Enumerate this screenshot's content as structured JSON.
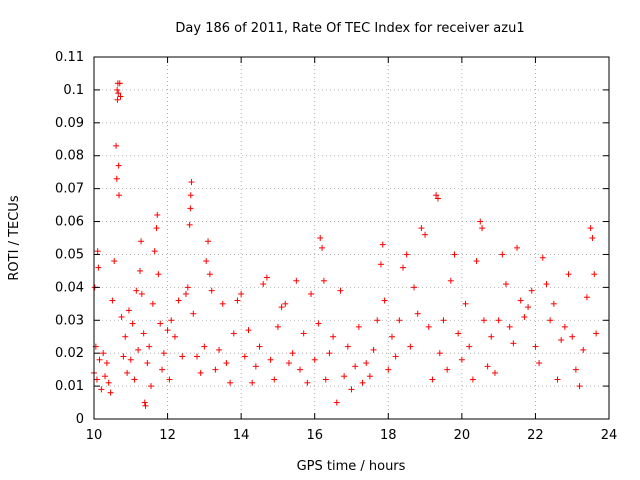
{
  "chart_data": {
    "type": "scatter",
    "title": "Day 186 of 2011, Rate Of TEC Index for receiver azu1",
    "xlabel": "GPS time / hours",
    "ylabel": "ROTI / TECUs",
    "xlim": [
      10,
      24
    ],
    "ylim": [
      0,
      0.11
    ],
    "xticks": [
      "10",
      "12",
      "14",
      "16",
      "18",
      "20",
      "22",
      "24"
    ],
    "yticks": [
      "0",
      "0.01",
      "0.02",
      "0.03",
      "0.04",
      "0.05",
      "0.06",
      "0.07",
      "0.08",
      "0.09",
      "0.1",
      "0.11"
    ],
    "grid": true,
    "marker": "+",
    "color": "#ff0000",
    "series": [
      {
        "points": [
          [
            10.0,
            0.014
          ],
          [
            10.02,
            0.04
          ],
          [
            10.05,
            0.022
          ],
          [
            10.08,
            0.012
          ],
          [
            10.1,
            0.051
          ],
          [
            10.12,
            0.046
          ],
          [
            10.15,
            0.018
          ],
          [
            10.2,
            0.009
          ],
          [
            10.25,
            0.02
          ],
          [
            10.3,
            0.013
          ],
          [
            10.35,
            0.017
          ],
          [
            10.4,
            0.011
          ],
          [
            10.45,
            0.008
          ],
          [
            10.5,
            0.036
          ],
          [
            10.55,
            0.048
          ],
          [
            10.6,
            0.083
          ],
          [
            10.62,
            0.073
          ],
          [
            10.63,
            0.1
          ],
          [
            10.64,
            0.097
          ],
          [
            10.65,
            0.102
          ],
          [
            10.66,
            0.099
          ],
          [
            10.67,
            0.077
          ],
          [
            10.68,
            0.068
          ],
          [
            10.7,
            0.102
          ],
          [
            10.72,
            0.098
          ],
          [
            10.75,
            0.031
          ],
          [
            10.8,
            0.019
          ],
          [
            10.85,
            0.025
          ],
          [
            10.9,
            0.014
          ],
          [
            10.95,
            0.033
          ],
          [
            11.0,
            0.018
          ],
          [
            11.05,
            0.029
          ],
          [
            11.1,
            0.012
          ],
          [
            11.15,
            0.039
          ],
          [
            11.2,
            0.021
          ],
          [
            11.25,
            0.045
          ],
          [
            11.28,
            0.054
          ],
          [
            11.3,
            0.038
          ],
          [
            11.35,
            0.026
          ],
          [
            11.38,
            0.005
          ],
          [
            11.4,
            0.004
          ],
          [
            11.45,
            0.017
          ],
          [
            11.5,
            0.022
          ],
          [
            11.55,
            0.01
          ],
          [
            11.6,
            0.035
          ],
          [
            11.65,
            0.051
          ],
          [
            11.7,
            0.058
          ],
          [
            11.72,
            0.062
          ],
          [
            11.75,
            0.044
          ],
          [
            11.8,
            0.029
          ],
          [
            11.85,
            0.015
          ],
          [
            11.9,
            0.02
          ],
          [
            12.0,
            0.027
          ],
          [
            12.05,
            0.012
          ],
          [
            12.1,
            0.03
          ],
          [
            12.2,
            0.025
          ],
          [
            12.3,
            0.036
          ],
          [
            12.4,
            0.019
          ],
          [
            12.5,
            0.038
          ],
          [
            12.55,
            0.04
          ],
          [
            12.6,
            0.059
          ],
          [
            12.62,
            0.064
          ],
          [
            12.63,
            0.068
          ],
          [
            12.65,
            0.072
          ],
          [
            12.7,
            0.032
          ],
          [
            12.8,
            0.019
          ],
          [
            12.9,
            0.014
          ],
          [
            13.0,
            0.022
          ],
          [
            13.05,
            0.048
          ],
          [
            13.1,
            0.054
          ],
          [
            13.15,
            0.044
          ],
          [
            13.2,
            0.039
          ],
          [
            13.3,
            0.015
          ],
          [
            13.4,
            0.021
          ],
          [
            13.5,
            0.035
          ],
          [
            13.6,
            0.017
          ],
          [
            13.7,
            0.011
          ],
          [
            13.8,
            0.026
          ],
          [
            13.9,
            0.036
          ],
          [
            14.0,
            0.038
          ],
          [
            14.1,
            0.019
          ],
          [
            14.2,
            0.027
          ],
          [
            14.3,
            0.011
          ],
          [
            14.4,
            0.016
          ],
          [
            14.5,
            0.022
          ],
          [
            14.6,
            0.041
          ],
          [
            14.7,
            0.043
          ],
          [
            14.8,
            0.018
          ],
          [
            14.9,
            0.012
          ],
          [
            15.0,
            0.028
          ],
          [
            15.1,
            0.034
          ],
          [
            15.2,
            0.035
          ],
          [
            15.3,
            0.017
          ],
          [
            15.4,
            0.02
          ],
          [
            15.5,
            0.042
          ],
          [
            15.6,
            0.015
          ],
          [
            15.7,
            0.026
          ],
          [
            15.8,
            0.011
          ],
          [
            15.9,
            0.038
          ],
          [
            16.0,
            0.018
          ],
          [
            16.1,
            0.029
          ],
          [
            16.15,
            0.055
          ],
          [
            16.2,
            0.052
          ],
          [
            16.25,
            0.042
          ],
          [
            16.3,
            0.012
          ],
          [
            16.4,
            0.02
          ],
          [
            16.5,
            0.025
          ],
          [
            16.6,
            0.005
          ],
          [
            16.7,
            0.039
          ],
          [
            16.8,
            0.013
          ],
          [
            16.9,
            0.022
          ],
          [
            17.0,
            0.009
          ],
          [
            17.1,
            0.016
          ],
          [
            17.2,
            0.028
          ],
          [
            17.3,
            0.011
          ],
          [
            17.4,
            0.017
          ],
          [
            17.5,
            0.013
          ],
          [
            17.6,
            0.021
          ],
          [
            17.7,
            0.03
          ],
          [
            17.8,
            0.047
          ],
          [
            17.85,
            0.053
          ],
          [
            17.9,
            0.036
          ],
          [
            18.0,
            0.015
          ],
          [
            18.1,
            0.025
          ],
          [
            18.2,
            0.019
          ],
          [
            18.3,
            0.03
          ],
          [
            18.4,
            0.046
          ],
          [
            18.5,
            0.05
          ],
          [
            18.6,
            0.022
          ],
          [
            18.7,
            0.04
          ],
          [
            18.8,
            0.032
          ],
          [
            18.9,
            0.058
          ],
          [
            19.0,
            0.056
          ],
          [
            19.1,
            0.028
          ],
          [
            19.2,
            0.012
          ],
          [
            19.3,
            0.068
          ],
          [
            19.35,
            0.067
          ],
          [
            19.4,
            0.02
          ],
          [
            19.5,
            0.03
          ],
          [
            19.6,
            0.015
          ],
          [
            19.7,
            0.042
          ],
          [
            19.8,
            0.05
          ],
          [
            19.9,
            0.026
          ],
          [
            20.0,
            0.018
          ],
          [
            20.1,
            0.035
          ],
          [
            20.2,
            0.022
          ],
          [
            20.3,
            0.012
          ],
          [
            20.4,
            0.048
          ],
          [
            20.5,
            0.06
          ],
          [
            20.55,
            0.058
          ],
          [
            20.6,
            0.03
          ],
          [
            20.7,
            0.016
          ],
          [
            20.8,
            0.025
          ],
          [
            20.9,
            0.014
          ],
          [
            21.0,
            0.03
          ],
          [
            21.1,
            0.05
          ],
          [
            21.2,
            0.041
          ],
          [
            21.3,
            0.028
          ],
          [
            21.4,
            0.023
          ],
          [
            21.5,
            0.052
          ],
          [
            21.6,
            0.036
          ],
          [
            21.7,
            0.031
          ],
          [
            21.8,
            0.034
          ],
          [
            21.9,
            0.039
          ],
          [
            22.0,
            0.022
          ],
          [
            22.1,
            0.017
          ],
          [
            22.2,
            0.049
          ],
          [
            22.3,
            0.041
          ],
          [
            22.4,
            0.03
          ],
          [
            22.5,
            0.035
          ],
          [
            22.6,
            0.012
          ],
          [
            22.7,
            0.024
          ],
          [
            22.8,
            0.028
          ],
          [
            22.9,
            0.044
          ],
          [
            23.0,
            0.025
          ],
          [
            23.1,
            0.015
          ],
          [
            23.2,
            0.01
          ],
          [
            23.3,
            0.021
          ],
          [
            23.4,
            0.037
          ],
          [
            23.5,
            0.058
          ],
          [
            23.55,
            0.055
          ],
          [
            23.6,
            0.044
          ],
          [
            23.65,
            0.026
          ]
        ]
      }
    ]
  }
}
